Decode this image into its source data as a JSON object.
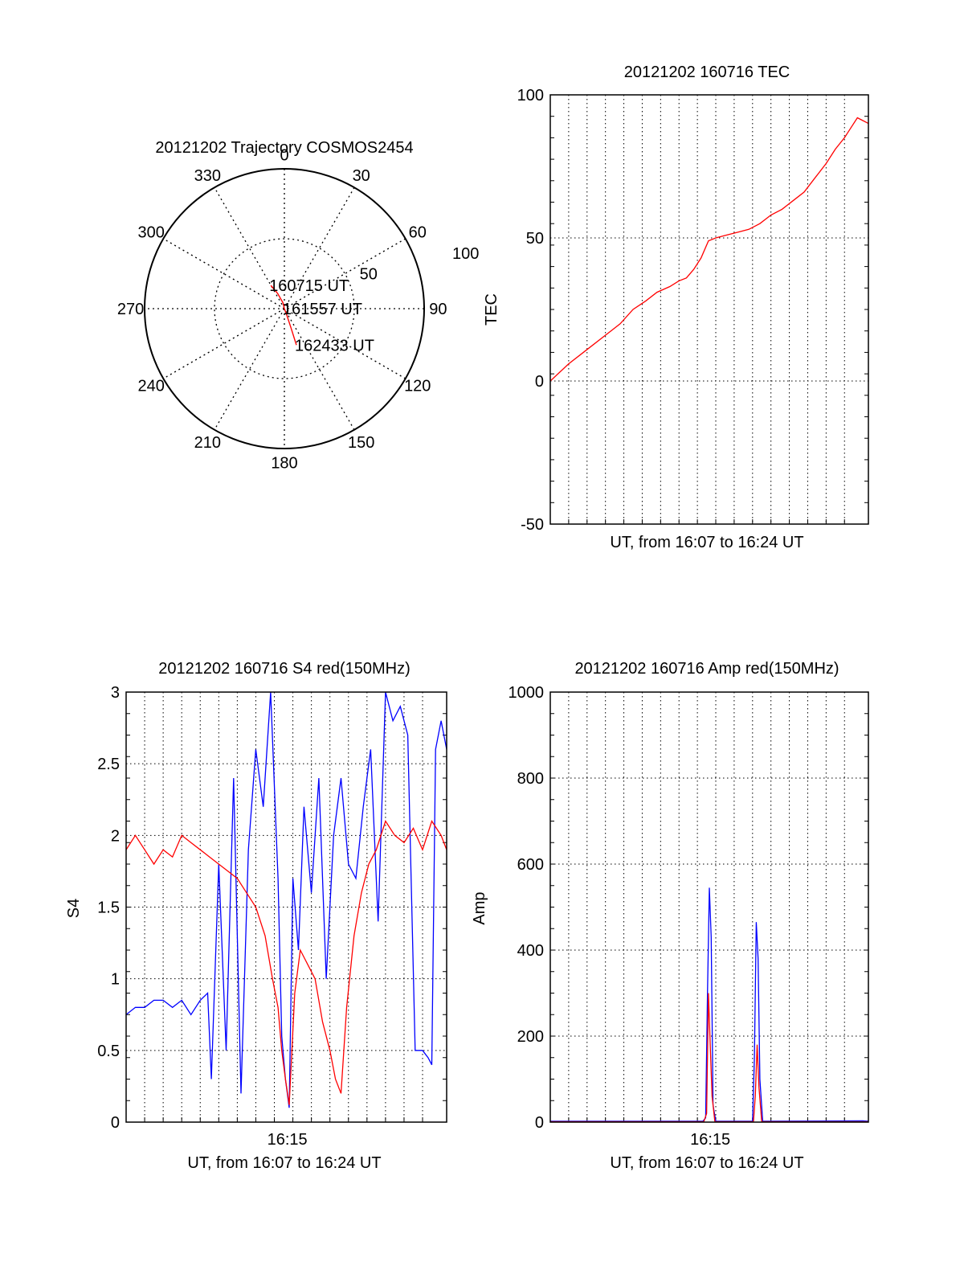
{
  "colors": {
    "red": "#ff0000",
    "blue": "#0000ff",
    "axis": "#000000",
    "grid": "#000000",
    "background": "#ffffff"
  },
  "chart_data": [
    {
      "id": "polar",
      "type": "polar",
      "title": "20121202 Trajectory COSMOS2454",
      "azimuth_labels": [
        "0",
        "30",
        "60",
        "90",
        "120",
        "150",
        "180",
        "210",
        "240",
        "270",
        "300",
        "330"
      ],
      "radial_labels": [
        "50",
        "100"
      ],
      "elevation_range": [
        0,
        100
      ],
      "grid": true,
      "series": [
        {
          "color": "#ff0000",
          "points": [
            [
              -30.2,
              19.2
            ],
            [
              -24.0,
              12.0
            ],
            [
              -14.0,
              4.5
            ],
            [
              0,
              0
            ],
            [
              159.5,
              4.7
            ],
            [
              161.0,
              15.0
            ],
            [
              161.7,
              27.4
            ]
          ]
        }
      ],
      "annotations": [
        {
          "text": "160715 UT",
          "az": -30.2,
          "r": 19.2
        },
        {
          "text": "161557 UT",
          "az": 0,
          "r": 0
        },
        {
          "text": "162433 UT",
          "az": 161.7,
          "r": 27.4
        }
      ]
    },
    {
      "id": "tec",
      "type": "line",
      "title": "20121202 160716 TEC",
      "xlabel": "UT, from 16:07 to 16:24 UT",
      "ylabel": "TEC",
      "xlim": [
        0,
        17.3
      ],
      "ylim": [
        -50,
        100
      ],
      "yticks": [
        "-50",
        "0",
        "50",
        "100"
      ],
      "grid": true,
      "series": [
        {
          "color": "#ff0000",
          "x": [
            0,
            1.0,
            2.0,
            3.0,
            3.8,
            4.5,
            5.2,
            5.8,
            6.5,
            7.0,
            7.4,
            7.8,
            8.2,
            8.6,
            9.0,
            9.6,
            10.2,
            10.8,
            11.4,
            12.0,
            12.6,
            13.2,
            13.8,
            14.4,
            15.0,
            15.5,
            16.0,
            16.3,
            16.7,
            17.0,
            17.3
          ],
          "values": [
            0,
            6,
            11,
            16,
            20,
            25,
            28,
            31,
            33,
            35,
            36,
            39,
            43,
            49,
            50,
            51,
            52,
            53,
            55,
            58,
            60,
            63,
            66,
            71,
            76,
            81,
            85,
            88,
            92,
            91,
            90
          ]
        }
      ]
    },
    {
      "id": "s4",
      "type": "line",
      "title": "20121202 160716 S4 red(150MHz)",
      "xlabel": "UT, from 16:07 to 16:24 UT",
      "ylabel": "S4",
      "xlim": [
        0,
        17.3
      ],
      "ylim": [
        0,
        3
      ],
      "yticks": [
        "0",
        "0.5",
        "1",
        "1.5",
        "2",
        "2.5",
        "3"
      ],
      "xticks": [
        {
          "value": 8.7,
          "label": "16:15"
        }
      ],
      "grid": true,
      "series": [
        {
          "color": "#0000ff",
          "x": [
            0,
            0.5,
            1.0,
            1.5,
            2.0,
            2.5,
            3.0,
            3.5,
            4.0,
            4.4,
            4.6,
            5.0,
            5.4,
            5.8,
            6.2,
            6.6,
            7.0,
            7.4,
            7.8,
            8.2,
            8.4,
            8.6,
            8.8,
            9.0,
            9.3,
            9.6,
            10.0,
            10.4,
            10.8,
            11.2,
            11.6,
            12.0,
            12.4,
            12.8,
            13.2,
            13.6,
            14.0,
            14.4,
            14.8,
            15.2,
            15.6,
            16.0,
            16.3,
            16.5,
            16.7,
            17.0,
            17.3
          ],
          "values": [
            0.75,
            0.8,
            0.8,
            0.85,
            0.85,
            0.8,
            0.85,
            0.75,
            0.85,
            0.9,
            0.3,
            1.8,
            0.5,
            2.4,
            0.2,
            1.9,
            2.6,
            2.2,
            3.0,
            1.7,
            0.6,
            0.3,
            0.1,
            1.7,
            1.2,
            2.2,
            1.6,
            2.4,
            1.0,
            2.0,
            2.4,
            1.8,
            1.7,
            2.2,
            2.6,
            1.4,
            3.0,
            2.8,
            2.9,
            2.7,
            0.5,
            0.5,
            0.45,
            0.4,
            2.6,
            2.8,
            2.6
          ]
        },
        {
          "color": "#ff0000",
          "x": [
            0,
            0.5,
            1.0,
            1.5,
            2.0,
            2.5,
            3.0,
            3.5,
            4.0,
            4.5,
            5.0,
            5.5,
            6.0,
            6.5,
            7.0,
            7.5,
            7.9,
            8.2,
            8.4,
            8.6,
            8.8,
            9.1,
            9.4,
            9.8,
            10.2,
            10.6,
            11.0,
            11.3,
            11.6,
            11.9,
            12.3,
            12.7,
            13.1,
            13.5,
            14.0,
            14.5,
            15.0,
            15.5,
            16.0,
            16.5,
            17.0,
            17.3
          ],
          "values": [
            1.9,
            2.0,
            1.9,
            1.8,
            1.9,
            1.85,
            2.0,
            1.95,
            1.9,
            1.85,
            1.8,
            1.75,
            1.7,
            1.6,
            1.5,
            1.3,
            1.0,
            0.8,
            0.5,
            0.3,
            0.12,
            0.9,
            1.2,
            1.1,
            1.0,
            0.7,
            0.5,
            0.3,
            0.2,
            0.8,
            1.3,
            1.6,
            1.8,
            1.9,
            2.1,
            2.0,
            1.95,
            2.05,
            1.9,
            2.1,
            2.0,
            1.9
          ]
        }
      ]
    },
    {
      "id": "amp",
      "type": "line",
      "title": "20121202 160716 Amp red(150MHz)",
      "xlabel": "UT, from 16:07 to 16:24 UT",
      "ylabel": "Amp",
      "xlim": [
        0,
        17.3
      ],
      "ylim": [
        0,
        1000
      ],
      "yticks": [
        "0",
        "200",
        "400",
        "600",
        "800",
        "1000"
      ],
      "xticks": [
        {
          "value": 8.7,
          "label": "16:15"
        }
      ],
      "grid": true,
      "series": [
        {
          "color": "#0000ff",
          "x": [
            0,
            8.3,
            8.45,
            8.55,
            8.65,
            8.75,
            8.85,
            9.0,
            11.0,
            11.1,
            11.2,
            11.3,
            11.4,
            11.55,
            17.0,
            17.3
          ],
          "values": [
            2,
            2,
            10,
            300,
            545,
            430,
            40,
            2,
            2,
            150,
            465,
            380,
            100,
            2,
            3,
            2
          ]
        },
        {
          "color": "#ff0000",
          "x": [
            0,
            8.35,
            8.5,
            8.6,
            8.7,
            8.8,
            8.95,
            11.05,
            11.15,
            11.25,
            11.35,
            11.5,
            17.3
          ],
          "values": [
            1,
            1,
            20,
            300,
            180,
            60,
            1,
            1,
            60,
            180,
            80,
            1,
            1
          ]
        }
      ]
    }
  ]
}
